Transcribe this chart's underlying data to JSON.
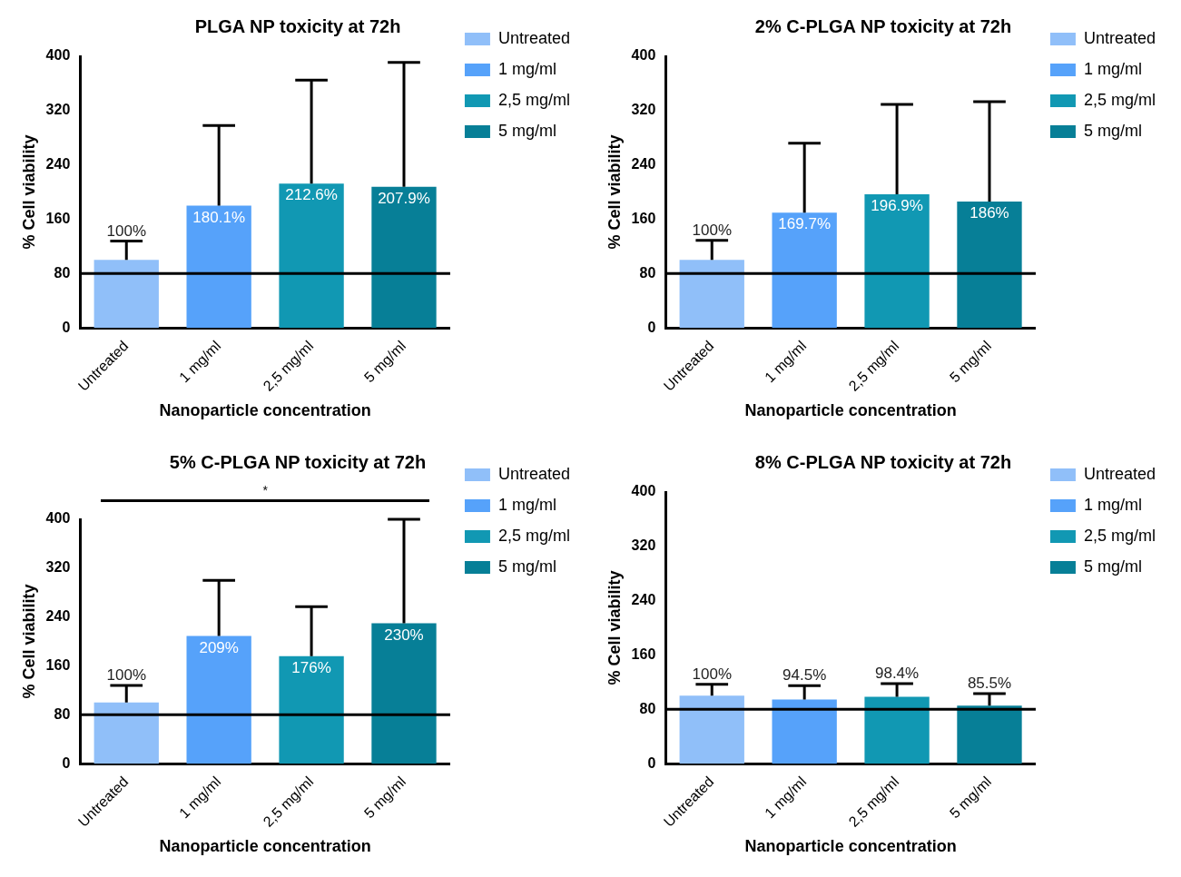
{
  "chart_data": [
    {
      "type": "bar",
      "title": "PLGA NP toxicity at 72h",
      "xlabel": "Nanoparticle concentration",
      "ylabel": "% Cell viability",
      "categories": [
        "Untreated",
        "1 mg/ml",
        "2,5 mg/ml",
        "5 mg/ml"
      ],
      "series": [
        {
          "name": "Untreated",
          "color": "#90bff9",
          "values": [
            100,
            null,
            null,
            null
          ],
          "errors": [
            [
              100,
              128
            ],
            null,
            null,
            null
          ],
          "value_labels": [
            "100%",
            null,
            null,
            null
          ]
        },
        {
          "name": "1 mg/ml",
          "color": "#56a2fa",
          "values": [
            null,
            180.1,
            null,
            null
          ],
          "errors": [
            null,
            [
              180.1,
              298
            ],
            null,
            null
          ],
          "value_labels": [
            null,
            "180.1%",
            null,
            null
          ]
        },
        {
          "name": "2,5 mg/ml",
          "color": "#1198b3",
          "values": [
            null,
            null,
            212.6,
            null
          ],
          "errors": [
            null,
            null,
            [
              212.6,
              365
            ],
            null
          ],
          "value_labels": [
            null,
            null,
            "212.6%",
            null
          ]
        },
        {
          "name": "5 mg/ml",
          "color": "#077f97",
          "values": [
            null,
            null,
            null,
            207.9
          ],
          "errors": [
            null,
            null,
            null,
            [
              207.9,
              391
            ]
          ],
          "value_labels": [
            null,
            null,
            null,
            "207.9%"
          ]
        }
      ],
      "ylim": [
        0,
        400
      ],
      "yticks": [
        0,
        80,
        160,
        240,
        320,
        400
      ],
      "ref_lines": [
        {
          "axis": "y",
          "value": 80,
          "color": "#000000"
        }
      ],
      "legend": "right",
      "grid": false
    },
    {
      "type": "bar",
      "title": "2% C-PLGA NP toxicity at 72h",
      "xlabel": "Nanoparticle concentration",
      "ylabel": "% Cell viability",
      "categories": [
        "Untreated",
        "1 mg/ml",
        "2,5 mg/ml",
        "5 mg/ml"
      ],
      "series": [
        {
          "name": "Untreated",
          "color": "#90bff9",
          "values": [
            100,
            null,
            null,
            null
          ],
          "errors": [
            [
              100,
              129
            ],
            null,
            null,
            null
          ],
          "value_labels": [
            "100%",
            null,
            null,
            null
          ]
        },
        {
          "name": "1 mg/ml",
          "color": "#56a2fa",
          "values": [
            null,
            169.7,
            null,
            null
          ],
          "errors": [
            null,
            [
              169.7,
              272
            ],
            null,
            null
          ],
          "value_labels": [
            null,
            "169.7%",
            null,
            null
          ]
        },
        {
          "name": "2,5 mg/ml",
          "color": "#1198b3",
          "values": [
            null,
            null,
            196.9,
            null
          ],
          "errors": [
            null,
            null,
            [
              196.9,
              329
            ],
            null
          ],
          "value_labels": [
            null,
            null,
            "196.9%",
            null
          ]
        },
        {
          "name": "5 mg/ml",
          "color": "#077f97",
          "values": [
            null,
            null,
            null,
            186
          ],
          "errors": [
            null,
            null,
            null,
            [
              186,
              333
            ]
          ],
          "value_labels": [
            null,
            null,
            null,
            "186%"
          ]
        }
      ],
      "ylim": [
        0,
        400
      ],
      "yticks": [
        0,
        80,
        160,
        240,
        320,
        400
      ],
      "ref_lines": [
        {
          "axis": "y",
          "value": 80,
          "color": "#000000"
        }
      ],
      "legend": "right",
      "grid": false
    },
    {
      "type": "bar",
      "title": "5% C-PLGA NP toxicity at 72h",
      "xlabel": "Nanoparticle concentration",
      "ylabel": "% Cell viability",
      "categories": [
        "Untreated",
        "1 mg/ml",
        "2,5 mg/ml",
        "5 mg/ml"
      ],
      "series": [
        {
          "name": "Untreated",
          "color": "#90bff9",
          "values": [
            100,
            null,
            null,
            null
          ],
          "errors": [
            [
              100,
              128
            ],
            null,
            null,
            null
          ],
          "value_labels": [
            "100%",
            null,
            null,
            null
          ]
        },
        {
          "name": "1 mg/ml",
          "color": "#56a2fa",
          "values": [
            null,
            209,
            null,
            null
          ],
          "errors": [
            null,
            [
              209,
              300
            ],
            null,
            null
          ],
          "value_labels": [
            null,
            "209%",
            null,
            null
          ]
        },
        {
          "name": "2,5 mg/ml",
          "color": "#1198b3",
          "values": [
            null,
            null,
            176,
            null
          ],
          "errors": [
            null,
            null,
            [
              176,
              257
            ],
            null
          ],
          "value_labels": [
            null,
            null,
            "176%",
            null
          ]
        },
        {
          "name": "5 mg/ml",
          "color": "#077f97",
          "values": [
            null,
            null,
            null,
            230
          ],
          "errors": [
            null,
            null,
            null,
            [
              230,
              400
            ]
          ],
          "value_labels": [
            null,
            null,
            null,
            "230%"
          ]
        }
      ],
      "ylim": [
        0,
        400
      ],
      "yticks": [
        0,
        80,
        160,
        240,
        320,
        400
      ],
      "ref_lines": [
        {
          "axis": "y",
          "value": 80,
          "color": "#000000"
        }
      ],
      "annotations": [
        "*"
      ],
      "legend": "right",
      "grid": false
    },
    {
      "type": "bar",
      "title": "8% C-PLGA NP toxicity at 72h",
      "xlabel": "Nanoparticle concentration",
      "ylabel": "% Cell viability",
      "categories": [
        "Untreated",
        "1 mg/ml",
        "2,5 mg/ml",
        "5 mg/ml"
      ],
      "series": [
        {
          "name": "Untreated",
          "color": "#90bff9",
          "values": [
            100,
            null,
            null,
            null
          ],
          "errors": [
            [
              100,
              117
            ],
            null,
            null,
            null
          ],
          "value_labels": [
            "100%",
            null,
            null,
            null
          ]
        },
        {
          "name": "1 mg/ml",
          "color": "#56a2fa",
          "values": [
            null,
            94.5,
            null,
            null
          ],
          "errors": [
            null,
            [
              94.5,
              115
            ],
            null,
            null
          ],
          "value_labels": [
            null,
            "94.5%",
            null,
            null
          ]
        },
        {
          "name": "2,5 mg/ml",
          "color": "#1198b3",
          "values": [
            null,
            null,
            98.4,
            null
          ],
          "errors": [
            null,
            null,
            [
              98.4,
              118
            ],
            null
          ],
          "value_labels": [
            null,
            null,
            "98.4%",
            null
          ]
        },
        {
          "name": "5 mg/ml",
          "color": "#077f97",
          "values": [
            null,
            null,
            null,
            85.5
          ],
          "errors": [
            null,
            null,
            null,
            [
              85.5,
              103
            ]
          ],
          "value_labels": [
            null,
            null,
            null,
            "85.5%"
          ]
        }
      ],
      "ylim": [
        0,
        400
      ],
      "yticks": [
        0,
        80,
        160,
        240,
        320,
        400
      ],
      "ref_lines": [
        {
          "axis": "y",
          "value": 80,
          "color": "#000000"
        }
      ],
      "legend": "right",
      "grid": false
    }
  ]
}
